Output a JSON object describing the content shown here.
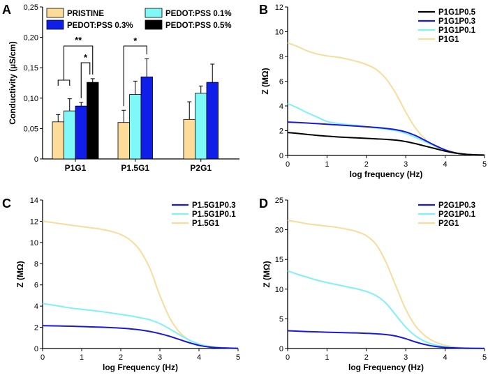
{
  "chart_data": [
    {
      "id": "A",
      "type": "bar",
      "panel_letter": "A",
      "ylabel": "Conductivity (µS/cm)",
      "ylim": [
        0,
        0.25
      ],
      "yticks": [
        "0",
        "0,05",
        "0,10",
        "0,15",
        "0,20",
        "0,25"
      ],
      "categories": [
        "P1G1",
        "P1.5G1",
        "P2G1"
      ],
      "series": [
        {
          "name": "PRISTINE",
          "color": "#fddc9a",
          "values": [
            0.061,
            0.06,
            0.065
          ],
          "errors": [
            0.012,
            0.02,
            0.029
          ]
        },
        {
          "name": "PEDOT:PSS 0.1%",
          "color": "#7ff8f8",
          "values": [
            0.079,
            0.106,
            0.108
          ],
          "errors": [
            0.02,
            0.022,
            0.012
          ]
        },
        {
          "name": "PEDOT:PSS 0.3%",
          "color": "#0f1ee8",
          "values": [
            0.087,
            0.135,
            0.126
          ],
          "errors": [
            0.006,
            0.03,
            0.03
          ]
        },
        {
          "name": "PEDOT:PSS 0.5%",
          "color": "#000000",
          "values": [
            0.126,
            null,
            null
          ],
          "errors": [
            0.006,
            null,
            null
          ]
        }
      ],
      "legend_order": [
        0,
        1,
        2,
        3
      ],
      "significance": [
        {
          "label": "**"
        },
        {
          "label": "*"
        },
        {
          "label": "*"
        }
      ]
    },
    {
      "id": "B",
      "type": "line",
      "panel_letter": "B",
      "xlabel": "log frequency (Hz)",
      "ylabel": "Z (MΩ)",
      "xlim": [
        0,
        5
      ],
      "ylim": [
        0,
        12
      ],
      "xticks": [
        "0",
        "1",
        "2",
        "3",
        "4",
        "5"
      ],
      "yticks": [
        "0",
        "2",
        "4",
        "6",
        "8",
        "10",
        "12"
      ],
      "x": [
        0,
        0.25,
        0.5,
        0.75,
        1,
        1.25,
        1.5,
        1.75,
        2,
        2.25,
        2.5,
        2.75,
        3,
        3.25,
        3.5,
        3.75,
        4,
        4.25,
        4.5,
        4.75,
        5
      ],
      "series": [
        {
          "name": "P1G1P0.5",
          "color": "#000000",
          "values": [
            1.85,
            1.78,
            1.7,
            1.62,
            1.56,
            1.5,
            1.46,
            1.42,
            1.38,
            1.34,
            1.3,
            1.24,
            1.12,
            0.95,
            0.75,
            0.55,
            0.35,
            0.2,
            0.1,
            0.05,
            0.03
          ]
        },
        {
          "name": "P1G1P0.3",
          "color": "#1a1ad6",
          "values": [
            2.7,
            2.66,
            2.62,
            2.57,
            2.52,
            2.47,
            2.42,
            2.37,
            2.32,
            2.26,
            2.18,
            2.08,
            1.9,
            1.6,
            1.2,
            0.8,
            0.45,
            0.22,
            0.1,
            0.05,
            0.03
          ]
        },
        {
          "name": "P1G1P0.1",
          "color": "#80f0f8",
          "values": [
            4.2,
            3.85,
            3.45,
            3.1,
            2.75,
            2.6,
            2.5,
            2.42,
            2.32,
            2.22,
            2.12,
            2.0,
            1.78,
            1.45,
            1.1,
            0.75,
            0.42,
            0.2,
            0.1,
            0.05,
            0.03
          ]
        },
        {
          "name": "P1G1",
          "color": "#f8dc9c",
          "values": [
            9.1,
            8.8,
            8.45,
            8.2,
            8.05,
            7.95,
            7.8,
            7.6,
            7.35,
            6.95,
            6.2,
            5.0,
            3.5,
            2.2,
            1.3,
            0.7,
            0.35,
            0.18,
            0.08,
            0.04,
            0.02
          ]
        }
      ]
    },
    {
      "id": "C",
      "type": "line",
      "panel_letter": "C",
      "xlabel": "log Frequency (Hz)",
      "ylabel": "Z (MΩ)",
      "xlim": [
        0,
        5
      ],
      "ylim": [
        0,
        14
      ],
      "xticks": [
        "0",
        "1",
        "2",
        "3",
        "4",
        "5"
      ],
      "yticks": [
        "0",
        "2",
        "4",
        "6",
        "8",
        "10",
        "12",
        "14"
      ],
      "x": [
        0,
        0.25,
        0.5,
        0.75,
        1,
        1.25,
        1.5,
        1.75,
        2,
        2.25,
        2.5,
        2.75,
        3,
        3.25,
        3.5,
        3.75,
        4,
        4.25,
        4.5,
        4.75,
        5
      ],
      "series": [
        {
          "name": "P1.5G1P0.3",
          "color": "#1a1ad6",
          "values": [
            2.15,
            2.14,
            2.12,
            2.1,
            2.07,
            2.04,
            2.01,
            1.97,
            1.92,
            1.85,
            1.75,
            1.6,
            1.4,
            1.15,
            0.85,
            0.55,
            0.3,
            0.15,
            0.07,
            0.04,
            0.02
          ]
        },
        {
          "name": "P1.5G1P0.1",
          "color": "#80f0f8",
          "values": [
            4.25,
            4.1,
            3.95,
            3.8,
            3.7,
            3.6,
            3.48,
            3.35,
            3.22,
            3.08,
            2.9,
            2.7,
            2.35,
            1.85,
            1.3,
            0.8,
            0.42,
            0.2,
            0.1,
            0.05,
            0.02
          ]
        },
        {
          "name": "P1.5G1",
          "color": "#f8dc9c",
          "values": [
            12.0,
            11.88,
            11.75,
            11.62,
            11.5,
            11.38,
            11.25,
            11.05,
            10.75,
            10.2,
            9.2,
            7.5,
            5.0,
            2.9,
            1.55,
            0.8,
            0.4,
            0.2,
            0.1,
            0.05,
            0.02
          ]
        }
      ]
    },
    {
      "id": "D",
      "type": "line",
      "panel_letter": "D",
      "xlabel": "log Frequency (Hz)",
      "ylabel": "Z (MΩ)",
      "xlim": [
        0,
        5
      ],
      "ylim": [
        0,
        25
      ],
      "xticks": [
        "0",
        "1",
        "2",
        "3",
        "4",
        "5"
      ],
      "yticks": [
        "0",
        "5",
        "10",
        "15",
        "20",
        "25"
      ],
      "x": [
        0,
        0.25,
        0.5,
        0.75,
        1,
        1.25,
        1.5,
        1.75,
        2,
        2.25,
        2.5,
        2.75,
        3,
        3.25,
        3.5,
        3.75,
        4,
        4.25,
        4.5,
        4.75,
        5
      ],
      "series": [
        {
          "name": "P2G1P0.3",
          "color": "#1a1ad6",
          "values": [
            3.0,
            2.92,
            2.85,
            2.8,
            2.75,
            2.7,
            2.66,
            2.62,
            2.56,
            2.48,
            2.35,
            2.1,
            1.65,
            1.1,
            0.65,
            0.35,
            0.18,
            0.1,
            0.05,
            0.03,
            0.02
          ]
        },
        {
          "name": "P2G1P0.1",
          "color": "#80f0f8",
          "values": [
            13.1,
            12.5,
            12.0,
            11.5,
            11.1,
            10.75,
            10.4,
            10.05,
            9.6,
            8.9,
            7.6,
            5.6,
            3.6,
            2.1,
            1.15,
            0.6,
            0.3,
            0.15,
            0.08,
            0.04,
            0.02
          ]
        },
        {
          "name": "P2G1",
          "color": "#f8dc9c",
          "values": [
            21.6,
            21.3,
            21.0,
            20.8,
            20.6,
            20.4,
            20.1,
            19.7,
            19.0,
            17.5,
            14.5,
            10.5,
            6.6,
            3.8,
            2.1,
            1.1,
            0.55,
            0.27,
            0.13,
            0.06,
            0.03
          ]
        }
      ]
    }
  ]
}
